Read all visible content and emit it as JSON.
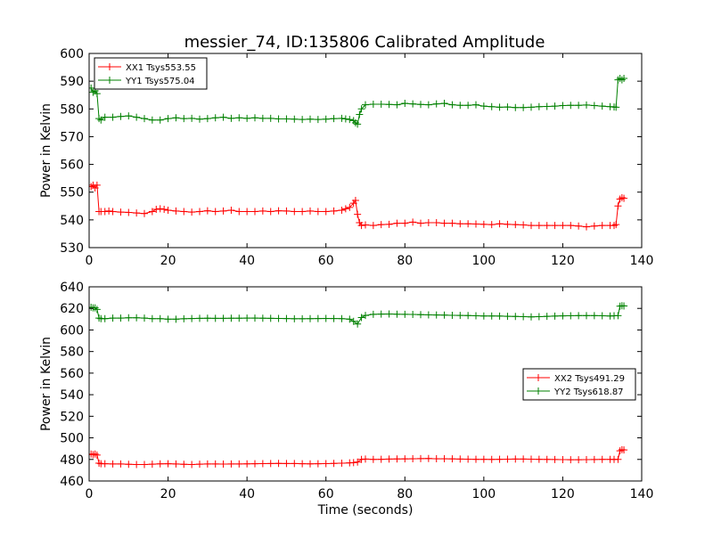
{
  "figure": {
    "title": "messier_74, ID:135806 Calibrated Amplitude"
  },
  "chart_data": [
    {
      "type": "line",
      "title": "messier_74, ID:135806 Calibrated Amplitude",
      "xlabel": "",
      "ylabel": "Power in Kelvin",
      "xlim": [
        0,
        140
      ],
      "ylim": [
        530,
        600
      ],
      "xticks": [
        0,
        20,
        40,
        60,
        80,
        100,
        120,
        140
      ],
      "yticks": [
        530,
        540,
        550,
        560,
        570,
        580,
        590,
        600
      ],
      "grid": false,
      "legend_position": "top-left",
      "series": [
        {
          "name": "XX1 Tsys553.55",
          "color": "#ff0000",
          "marker": "plus",
          "x": [
            0.5,
            1,
            1.5,
            2,
            2.5,
            3,
            4,
            5,
            6,
            8,
            10,
            12,
            14,
            16,
            17,
            18,
            19,
            20,
            22,
            24,
            26,
            28,
            30,
            32,
            34,
            36,
            38,
            40,
            42,
            44,
            46,
            48,
            50,
            52,
            54,
            56,
            58,
            60,
            62,
            64,
            65,
            66,
            67,
            67.5,
            68,
            68.5,
            69,
            70,
            72,
            74,
            76,
            78,
            80,
            82,
            84,
            86,
            88,
            90,
            92,
            94,
            96,
            98,
            100,
            102,
            104,
            106,
            108,
            110,
            112,
            114,
            116,
            118,
            120,
            122,
            124,
            126,
            128,
            130,
            132,
            133,
            133.5,
            134,
            134.5,
            135,
            135.5
          ],
          "y": [
            552,
            552.5,
            551.5,
            552.5,
            543,
            543,
            543,
            543.2,
            543,
            542.8,
            542.7,
            542.5,
            542.3,
            543,
            543.8,
            544,
            543.8,
            543.5,
            543.2,
            543,
            542.8,
            543,
            543.3,
            543,
            543.2,
            543.5,
            543,
            543,
            543,
            543.2,
            543,
            543.3,
            543.2,
            543,
            543,
            543.2,
            543,
            543,
            543.2,
            543.5,
            544,
            544.5,
            546,
            547,
            542,
            539,
            538,
            538.2,
            538,
            538.3,
            538.4,
            538.8,
            538.8,
            539.2,
            538.8,
            539,
            539,
            538.8,
            538.8,
            538.6,
            538.6,
            538.5,
            538.4,
            538.3,
            538.6,
            538.4,
            538.3,
            538.2,
            538,
            538,
            538,
            538,
            538,
            538,
            537.8,
            537.5,
            537.8,
            538,
            538,
            538,
            538.3,
            545,
            547.5,
            548,
            547.8
          ]
        },
        {
          "name": "YY1 Tsys575.04",
          "color": "#008000",
          "marker": "plus",
          "x": [
            0.5,
            1,
            1.5,
            2,
            2.5,
            3,
            4,
            6,
            8,
            10,
            12,
            14,
            16,
            18,
            20,
            22,
            24,
            26,
            28,
            30,
            32,
            34,
            36,
            38,
            40,
            42,
            44,
            46,
            48,
            50,
            52,
            54,
            56,
            58,
            60,
            62,
            64,
            65,
            66,
            67,
            67.5,
            68,
            68.5,
            69,
            70,
            72,
            74,
            76,
            78,
            80,
            82,
            84,
            86,
            88,
            90,
            92,
            94,
            96,
            98,
            100,
            102,
            104,
            106,
            108,
            110,
            112,
            114,
            116,
            118,
            120,
            122,
            124,
            126,
            128,
            130,
            132,
            133,
            133.5,
            134,
            134.5,
            135,
            135.5
          ],
          "y": [
            587.5,
            586,
            586.5,
            585.5,
            576.5,
            576,
            577,
            577,
            577.3,
            577.5,
            577,
            576.5,
            576,
            576,
            576.5,
            576.8,
            576.5,
            576.6,
            576.3,
            576.5,
            576.8,
            577,
            576.6,
            576.8,
            576.6,
            576.8,
            576.6,
            576.6,
            576.4,
            576.4,
            576.3,
            576.2,
            576.3,
            576.2,
            576.3,
            576.5,
            576.6,
            576.4,
            576.2,
            575.8,
            575,
            574.5,
            578,
            580,
            581.5,
            581.7,
            581.7,
            581.6,
            581.5,
            582,
            581.8,
            581.6,
            581.5,
            581.8,
            582,
            581.5,
            581.3,
            581.3,
            581.5,
            581,
            580.8,
            580.6,
            580.7,
            580.5,
            580.5,
            580.6,
            580.8,
            580.9,
            581,
            581.2,
            581.3,
            581.3,
            581.4,
            581.2,
            581,
            580.8,
            580.7,
            580.6,
            590.5,
            591,
            590.5,
            591
          ]
        }
      ]
    },
    {
      "type": "line",
      "title": "",
      "xlabel": "Time (seconds)",
      "ylabel": "Power in Kelvin",
      "xlim": [
        0,
        140
      ],
      "ylim": [
        460,
        640
      ],
      "xticks": [
        0,
        20,
        40,
        60,
        80,
        100,
        120,
        140
      ],
      "yticks": [
        460,
        480,
        500,
        520,
        540,
        560,
        580,
        600,
        620,
        640
      ],
      "grid": false,
      "legend_position": "center-right",
      "series": [
        {
          "name": "XX2 Tsys491.29",
          "color": "#ff0000",
          "marker": "plus",
          "x": [
            0.5,
            1,
            1.5,
            2,
            2.5,
            3,
            4,
            6,
            8,
            10,
            12,
            14,
            16,
            18,
            20,
            22,
            24,
            26,
            28,
            30,
            32,
            34,
            36,
            38,
            40,
            42,
            44,
            46,
            48,
            50,
            52,
            54,
            56,
            58,
            60,
            62,
            64,
            66,
            67,
            68,
            69,
            70,
            72,
            74,
            76,
            78,
            80,
            82,
            84,
            86,
            88,
            90,
            92,
            94,
            96,
            98,
            100,
            102,
            104,
            106,
            108,
            110,
            112,
            114,
            116,
            118,
            120,
            122,
            124,
            126,
            128,
            130,
            132,
            133,
            134,
            134.5,
            135,
            135.5
          ],
          "y": [
            485,
            484.5,
            485,
            484,
            476.5,
            476,
            476,
            475.8,
            475.8,
            475.5,
            475.3,
            475.3,
            475.6,
            475.9,
            476,
            475.8,
            475.5,
            475.3,
            475.6,
            475.8,
            475.8,
            475.7,
            475.8,
            475.8,
            475.9,
            476,
            476.1,
            476.2,
            476.3,
            476.2,
            476.2,
            476,
            475.9,
            476,
            476.1,
            476.3,
            476.5,
            476.8,
            477,
            477.5,
            480,
            480.3,
            480,
            480.1,
            480.3,
            480.4,
            480.5,
            480.6,
            480.7,
            480.8,
            480.6,
            480.6,
            480.5,
            480.3,
            480.2,
            480.1,
            480.1,
            480,
            480.1,
            480.2,
            480.3,
            480.3,
            480.2,
            480.1,
            480,
            479.9,
            479.8,
            479.7,
            479.7,
            479.8,
            479.9,
            480,
            480,
            480,
            480,
            488,
            489,
            488.8
          ]
        },
        {
          "name": "YY2 Tsys618.87",
          "color": "#008000",
          "marker": "plus",
          "x": [
            0.5,
            1,
            1.5,
            2,
            2.5,
            3,
            4,
            6,
            8,
            10,
            12,
            14,
            16,
            18,
            20,
            22,
            24,
            26,
            28,
            30,
            32,
            34,
            36,
            38,
            40,
            42,
            44,
            46,
            48,
            50,
            52,
            54,
            56,
            58,
            60,
            62,
            64,
            66,
            67,
            68,
            69,
            70,
            72,
            74,
            76,
            78,
            80,
            82,
            84,
            86,
            88,
            90,
            92,
            94,
            96,
            98,
            100,
            102,
            104,
            106,
            108,
            110,
            112,
            114,
            116,
            118,
            120,
            122,
            124,
            126,
            128,
            130,
            132,
            133,
            134,
            134.5,
            135,
            135.5
          ],
          "y": [
            621,
            620.5,
            620.5,
            619,
            611,
            610.5,
            610.5,
            611,
            611,
            611.3,
            611.3,
            611,
            610.5,
            610.5,
            610,
            610,
            610.4,
            610.6,
            610.8,
            610.9,
            610.8,
            610.8,
            610.9,
            610.9,
            611,
            611,
            610.9,
            610.8,
            610.7,
            610.6,
            610.4,
            610.4,
            610.5,
            610.6,
            610.7,
            610.6,
            610.5,
            610,
            608,
            605.5,
            611.5,
            613.5,
            614.5,
            614.7,
            614.8,
            614.6,
            614.5,
            614.4,
            614.2,
            614,
            613.9,
            613.8,
            613.6,
            613.5,
            613.4,
            613.2,
            613,
            613,
            612.9,
            612.7,
            612.5,
            612.3,
            612.1,
            612.3,
            612.6,
            612.9,
            613.1,
            613.2,
            613.3,
            613.3,
            613.3,
            613.2,
            613,
            613.2,
            613.3,
            622,
            622.5,
            622.2
          ]
        }
      ]
    }
  ]
}
